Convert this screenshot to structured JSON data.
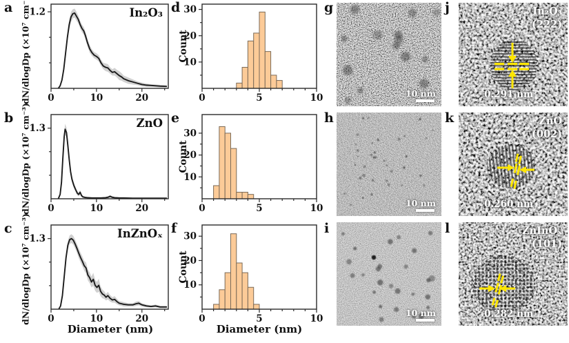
{
  "colors": {
    "bar_fill": "#fccb98",
    "bar_stroke": "#7a6a58",
    "line": "#1a1a1a",
    "band": "#c9c9c9",
    "frame": "#2b2b2b",
    "annotation_yellow": "#ffe600",
    "scalebar_white": "#ffffff"
  },
  "chart_data": [
    {
      "panel": "a",
      "type": "line",
      "title": "In₂O₃",
      "xlabel": "Diameter (nm)",
      "ylabel": "dN/dlogDp (×10⁷ cm⁻³)",
      "xlim": [
        0,
        25.8
      ],
      "ylim": [
        0,
        1.32
      ],
      "xticks": [
        0,
        10,
        20
      ],
      "xticks_minor": [
        5,
        15,
        25
      ],
      "yticks": [
        1.2
      ],
      "yticks_minor": [
        0.4,
        0.8
      ],
      "x": [
        1.6,
        2,
        2.4,
        2.8,
        3.2,
        3.6,
        4,
        4.4,
        4.8,
        5.2,
        5.6,
        6,
        6.4,
        6.8,
        7.2,
        7.6,
        8,
        8.5,
        9,
        9.5,
        10,
        10.5,
        11,
        11.5,
        12,
        12.5,
        13,
        13.5,
        14,
        14.5,
        15,
        15.5,
        16,
        17,
        18,
        19,
        20,
        21,
        22,
        23,
        24,
        25.5
      ],
      "y": [
        0,
        0.04,
        0.13,
        0.3,
        0.55,
        0.8,
        1.0,
        1.12,
        1.17,
        1.18,
        1.13,
        1.08,
        1.0,
        0.94,
        0.9,
        0.82,
        0.72,
        0.62,
        0.56,
        0.52,
        0.5,
        0.47,
        0.4,
        0.35,
        0.33,
        0.32,
        0.28,
        0.25,
        0.26,
        0.23,
        0.2,
        0.18,
        0.15,
        0.12,
        0.1,
        0.08,
        0.06,
        0.05,
        0.045,
        0.04,
        0.035,
        0.03
      ],
      "band": [
        0.01,
        0.02,
        0.03,
        0.05,
        0.06,
        0.07,
        0.08,
        0.08,
        0.07,
        0.07,
        0.07,
        0.06,
        0.06,
        0.06,
        0.06,
        0.06,
        0.06,
        0.06,
        0.05,
        0.05,
        0.05,
        0.05,
        0.05,
        0.05,
        0.06,
        0.06,
        0.05,
        0.05,
        0.06,
        0.06,
        0.07,
        0.06,
        0.05,
        0.05,
        0.04,
        0.03,
        0.03,
        0.025,
        0.02,
        0.02,
        0.02,
        0.015
      ]
    },
    {
      "panel": "b",
      "type": "line",
      "title": "ZnO",
      "xlabel": "Diameter (nm)",
      "ylabel": "dN/dlogDp (×10⁷ cm⁻³)",
      "xlim": [
        0,
        25.8
      ],
      "ylim": [
        0,
        1.55
      ],
      "xticks": [
        0,
        10,
        20
      ],
      "xticks_minor": [
        5,
        15,
        25
      ],
      "yticks": [
        1.3
      ],
      "yticks_minor": [
        0.433,
        0.867
      ],
      "x": [
        1.6,
        2,
        2.3,
        2.6,
        2.9,
        3.1,
        3.4,
        3.7,
        4,
        4.3,
        4.6,
        5,
        5.4,
        5.8,
        6.1,
        6.4,
        6.7,
        7,
        7.5,
        8,
        9,
        10,
        11,
        12,
        12.6,
        13,
        13.4,
        14,
        15,
        16,
        18,
        20,
        22,
        25.5
      ],
      "y": [
        0,
        0.08,
        0.3,
        0.75,
        1.15,
        1.28,
        1.22,
        0.98,
        0.72,
        0.5,
        0.36,
        0.25,
        0.17,
        0.1,
        0.08,
        0.12,
        0.06,
        0.035,
        0.025,
        0.02,
        0.015,
        0.015,
        0.015,
        0.02,
        0.03,
        0.045,
        0.03,
        0.02,
        0.015,
        0.015,
        0.01,
        0.01,
        0.01,
        0.01
      ],
      "band": [
        0.01,
        0.02,
        0.05,
        0.08,
        0.09,
        0.1,
        0.09,
        0.09,
        0.08,
        0.07,
        0.06,
        0.05,
        0.045,
        0.04,
        0.035,
        0.04,
        0.03,
        0.02,
        0.015,
        0.012,
        0.01,
        0.01,
        0.01,
        0.012,
        0.02,
        0.025,
        0.02,
        0.012,
        0.01,
        0.01,
        0.008,
        0.008,
        0.008,
        0.008
      ]
    },
    {
      "panel": "c",
      "type": "line",
      "title": "InZnOₓ",
      "xlabel": "Diameter (nm)",
      "ylabel": "dN/dlogDp (×10⁷ cm⁻³)",
      "xlim": [
        0,
        25.8
      ],
      "ylim": [
        0,
        1.55
      ],
      "xticks": [
        0,
        10,
        20
      ],
      "xticks_minor": [
        5,
        15,
        25
      ],
      "yticks": [
        1.3
      ],
      "yticks_minor": [
        0.433,
        0.867
      ],
      "x": [
        1.7,
        2.1,
        2.5,
        2.9,
        3.3,
        3.7,
        4.1,
        4.5,
        4.9,
        5.3,
        5.7,
        6.1,
        6.5,
        6.9,
        7.3,
        7.7,
        8.1,
        8.5,
        8.9,
        9.3,
        9.7,
        10.1,
        10.5,
        10.9,
        11.3,
        11.7,
        12.1,
        12.5,
        13,
        13.5,
        14,
        14.5,
        15,
        15.5,
        16,
        17,
        18,
        18.7,
        19.3,
        20,
        21,
        22,
        23,
        24,
        25.5
      ],
      "y": [
        0,
        0.06,
        0.25,
        0.6,
        0.95,
        1.18,
        1.28,
        1.3,
        1.27,
        1.2,
        1.12,
        1.03,
        0.95,
        0.88,
        0.8,
        0.76,
        0.63,
        0.58,
        0.5,
        0.55,
        0.44,
        0.4,
        0.44,
        0.33,
        0.28,
        0.26,
        0.22,
        0.25,
        0.2,
        0.17,
        0.18,
        0.14,
        0.11,
        0.1,
        0.09,
        0.08,
        0.08,
        0.1,
        0.11,
        0.08,
        0.06,
        0.05,
        0.06,
        0.04,
        0.04
      ],
      "band": [
        0.01,
        0.02,
        0.04,
        0.06,
        0.08,
        0.08,
        0.08,
        0.08,
        0.08,
        0.08,
        0.08,
        0.09,
        0.09,
        0.09,
        0.09,
        0.1,
        0.1,
        0.1,
        0.1,
        0.12,
        0.1,
        0.1,
        0.12,
        0.09,
        0.08,
        0.07,
        0.06,
        0.07,
        0.06,
        0.05,
        0.06,
        0.05,
        0.04,
        0.04,
        0.04,
        0.03,
        0.03,
        0.04,
        0.04,
        0.03,
        0.025,
        0.02,
        0.025,
        0.02,
        0.02
      ]
    },
    {
      "panel": "d",
      "type": "bar",
      "title": "",
      "xlabel": "Diameter (nm)",
      "ylabel": "Count",
      "xlim": [
        0,
        10
      ],
      "ylim": [
        0,
        32
      ],
      "xticks": [
        0,
        5,
        10
      ],
      "xticks_minor": [
        1,
        2,
        3,
        4,
        6,
        7,
        8,
        9
      ],
      "yticks": [
        10,
        20,
        30
      ],
      "yticks_minor": [
        5,
        15,
        25
      ],
      "bin_start": 3.0,
      "bin_width": 0.5,
      "counts": [
        2,
        8,
        18,
        21,
        29,
        14,
        5,
        3
      ]
    },
    {
      "panel": "e",
      "type": "bar",
      "title": "",
      "xlabel": "Diameter (nm)",
      "ylabel": "Count",
      "xlim": [
        0,
        10
      ],
      "ylim": [
        0,
        38.5
      ],
      "xticks": [
        0,
        5,
        10
      ],
      "xticks_minor": [
        1,
        2,
        3,
        4,
        6,
        7,
        8,
        9
      ],
      "yticks": [
        10,
        20,
        30
      ],
      "yticks_minor": [
        5,
        15,
        25
      ],
      "bin_start": 1.0,
      "bin_width": 0.5,
      "counts": [
        6,
        33,
        30,
        23,
        3,
        3,
        2
      ]
    },
    {
      "panel": "f",
      "type": "bar",
      "title": "",
      "xlabel": "Diameter (nm)",
      "ylabel": "Count",
      "xlim": [
        0,
        10
      ],
      "ylim": [
        0,
        34.6
      ],
      "xticks": [
        0,
        5,
        10
      ],
      "xticks_minor": [
        1,
        2,
        3,
        4,
        6,
        7,
        8,
        9
      ],
      "yticks": [
        10,
        20,
        30
      ],
      "yticks_minor": [
        5,
        15,
        25
      ],
      "bin_start": 1.0,
      "bin_width": 0.5,
      "counts": [
        2,
        8,
        15,
        31,
        19,
        15,
        9,
        2
      ]
    }
  ],
  "tem": [
    {
      "letter": "g",
      "scalebar": "10 nm"
    },
    {
      "letter": "h",
      "scalebar": "10 nm"
    },
    {
      "letter": "i",
      "scalebar": "10 nm"
    }
  ],
  "hrtem": [
    {
      "letter": "j",
      "material": "In₂O₃",
      "plane": "(222)",
      "spacing": "0.291 nm"
    },
    {
      "letter": "k",
      "material": "ZnO",
      "plane": "(002)",
      "spacing": "0.260 nm"
    },
    {
      "letter": "l",
      "material": "ZnInOₓ",
      "plane": "(101)",
      "spacing": "0.282 nm"
    }
  ]
}
